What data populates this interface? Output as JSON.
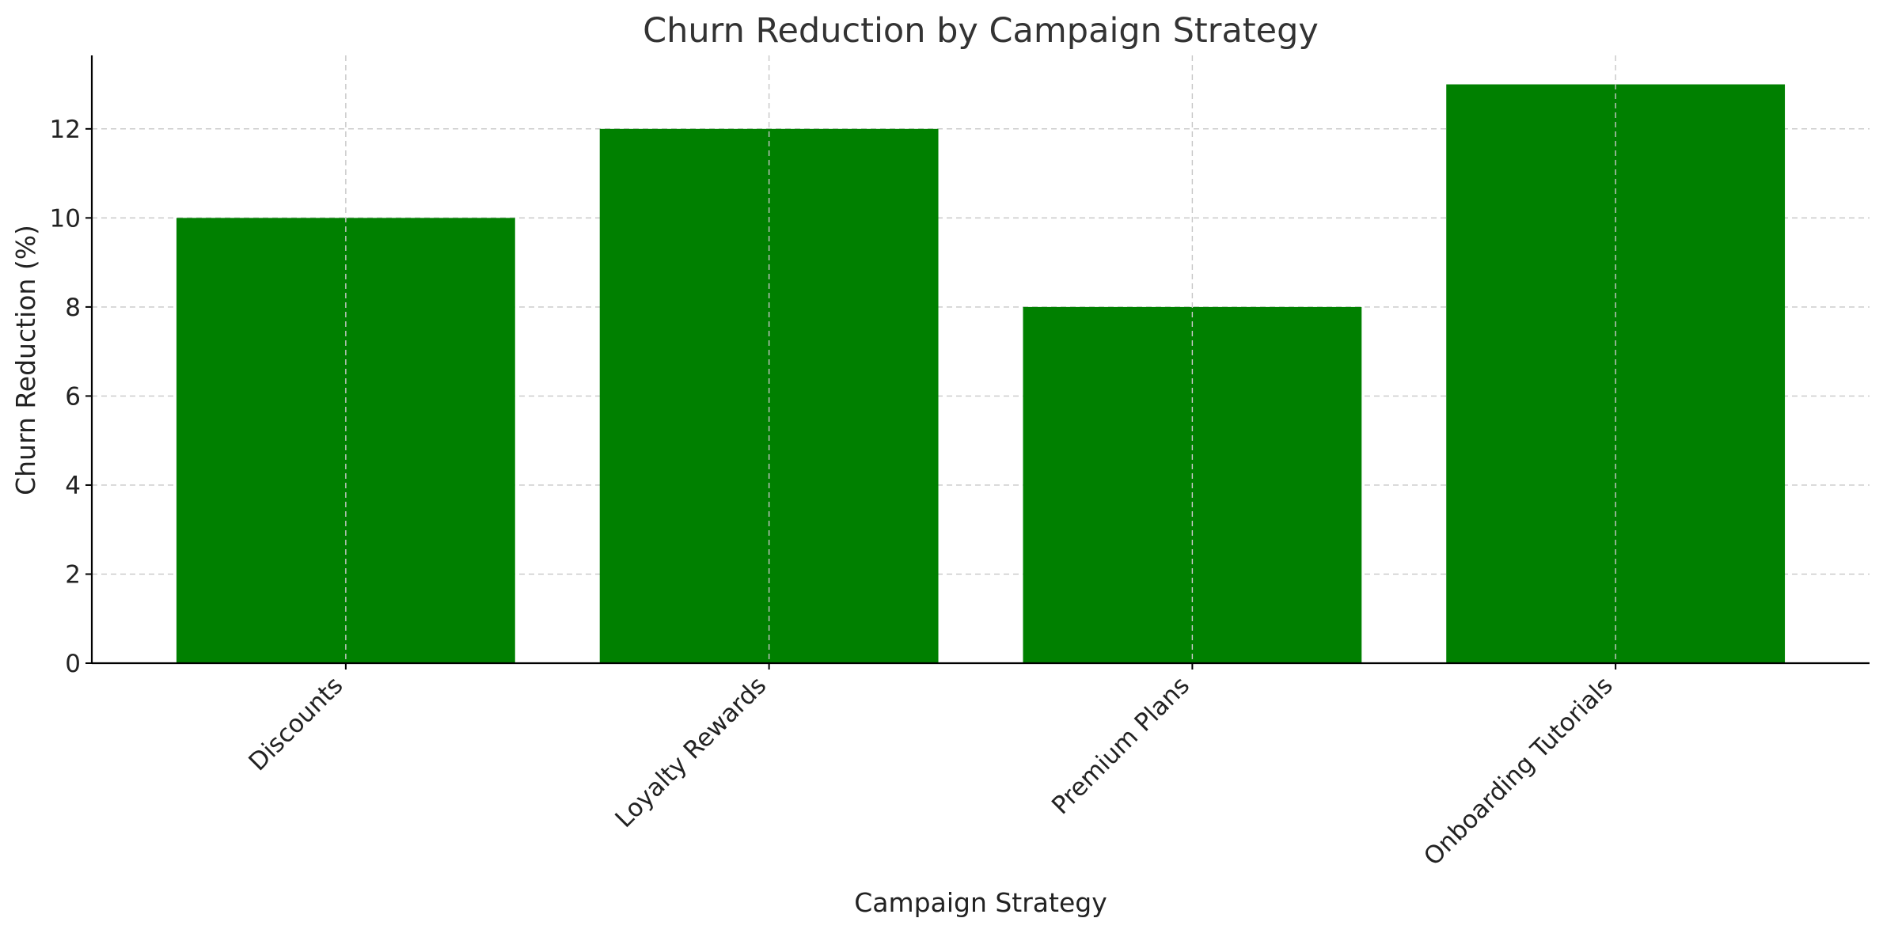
{
  "chart_data": {
    "type": "bar",
    "title": "Churn Reduction by Campaign Strategy",
    "xlabel": "Campaign Strategy",
    "ylabel": "Churn Reduction (%)",
    "categories": [
      "Discounts",
      "Loyalty Rewards",
      "Premium Plans",
      "Onboarding Tutorials"
    ],
    "values": [
      10,
      12,
      8,
      13
    ],
    "ylim": [
      0,
      13.65
    ],
    "yticks": [
      0,
      2,
      4,
      6,
      8,
      10,
      12
    ],
    "grid": true,
    "bar_color": "#008000",
    "grid_color": "#c8c8c8",
    "title_color": "#333333"
  }
}
